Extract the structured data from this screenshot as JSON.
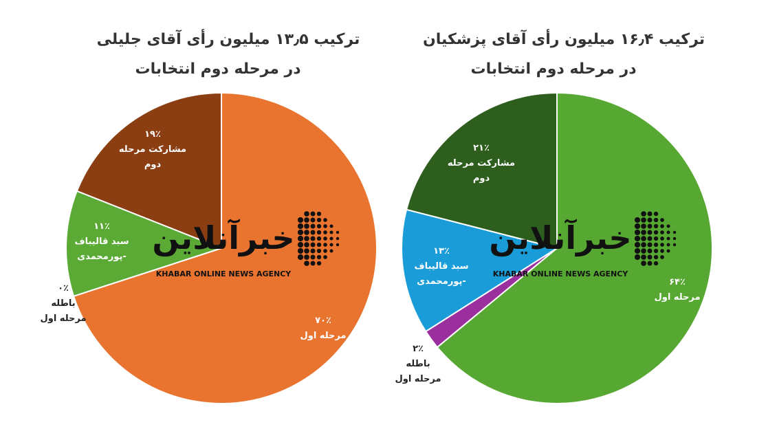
{
  "chart_data": [
    {
      "type": "pie",
      "title": "ترکیب ۱۳٫۵ میلیون رأی آقای جلیلی",
      "subtitle": "در مرحله دوم انتخابات",
      "categories": [
        "مرحله اول",
        "باطله مرحله اول",
        "سبد قالیباف -پورمحمدی",
        "مشارکت مرحله دوم"
      ],
      "values": [
        70,
        0,
        11,
        19
      ],
      "value_labels": [
        "۷۰٪",
        "۰٪",
        "۱۱٪",
        "۱۹٪"
      ],
      "colors": [
        "#e8742f",
        "#8a1a7e",
        "#5aaa35",
        "#8b3e12"
      ]
    },
    {
      "type": "pie",
      "title": "ترکیب ۱۶٫۴ میلیون رأی آقای پزشکیان",
      "subtitle": "در مرحله دوم انتخابات",
      "categories": [
        "مرحله اول",
        "باطله مرحله اول",
        "سبد قالیباف -پورمحمدی",
        "مشارکت مرحله دوم"
      ],
      "values": [
        64,
        2,
        13,
        21
      ],
      "value_labels": [
        "۶۴٪",
        "۲٪",
        "۱۳٪",
        "۲۱٪"
      ],
      "colors": [
        "#57a832",
        "#9b2f9e",
        "#1a9cd8",
        "#2e5e1e"
      ]
    }
  ],
  "watermark": {
    "name": "خبرآنلاین",
    "tagline": "KHABAR ONLINE NEWS AGENCY"
  }
}
